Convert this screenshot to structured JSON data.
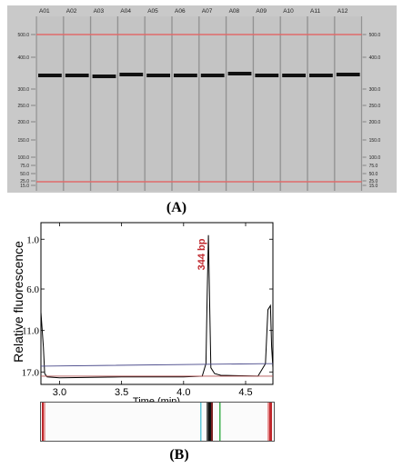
{
  "panel_a": {
    "caption": "(A)",
    "lanes": [
      "A01",
      "A02",
      "A03",
      "A04",
      "A05",
      "A06",
      "A07",
      "A08",
      "A09",
      "A10",
      "A11",
      "A12"
    ],
    "ladder_left": [
      "500.0",
      "400.0",
      "300.0",
      "250.0",
      "200.0",
      "150.0",
      "100.0",
      "75.0",
      "50.0",
      "25.0",
      "15.0"
    ],
    "ladder_right": [
      "500.0",
      "400.0",
      "300.0",
      "250.0",
      "200.0",
      "150.0",
      "100.0",
      "75.0",
      "50.0",
      "25.0",
      "15.0"
    ],
    "marker_color": "#e06b6b",
    "band_color": "#111111"
  },
  "panel_b": {
    "caption": "(B)",
    "ylabel": "Relative fluorescence",
    "xlabel": "Time (min)",
    "peak_label": "344 bp",
    "peak_label_color": "#c0282d",
    "y_ticks": [
      "17.0",
      "11.0",
      "6.0",
      "1.0"
    ],
    "x_ticks": [
      "3.0",
      "3.5",
      "4.0",
      "4.5"
    ]
  },
  "chart_data": {
    "type": "line",
    "title": "",
    "xlabel": "Time (min)",
    "ylabel": "Relative fluorescence",
    "xlim": [
      2.85,
      4.72
    ],
    "ylim": [
      -0.5,
      19
    ],
    "x_ticks": [
      3.0,
      3.5,
      4.0,
      4.5
    ],
    "y_ticks": [
      1.0,
      6.0,
      11.0,
      17.0
    ],
    "annotations": [
      {
        "text": "344 bp",
        "x": 4.2
      }
    ],
    "series": [
      {
        "color": "#000000",
        "x": [
          2.85,
          2.87,
          2.88,
          2.9,
          3.0,
          3.5,
          4.0,
          4.15,
          4.18,
          4.19,
          4.2,
          4.21,
          4.22,
          4.25,
          4.3,
          4.6,
          4.66,
          4.68,
          4.7,
          4.71,
          4.72
        ],
        "values": [
          8.2,
          4.0,
          0.8,
          0.4,
          0.3,
          0.4,
          0.4,
          0.5,
          2.0,
          10.0,
          17.5,
          9.0,
          1.5,
          0.8,
          0.6,
          0.5,
          2.0,
          8.5,
          9.0,
          4.0,
          1.5
        ]
      },
      {
        "color": "#4c4c8c",
        "x": [
          2.85,
          4.66,
          4.72
        ],
        "values": [
          1.7,
          2.0,
          2.0
        ]
      },
      {
        "color": "#b05050",
        "x": [
          2.85,
          4.72
        ],
        "values": [
          0.5,
          0.5
        ]
      }
    ]
  }
}
